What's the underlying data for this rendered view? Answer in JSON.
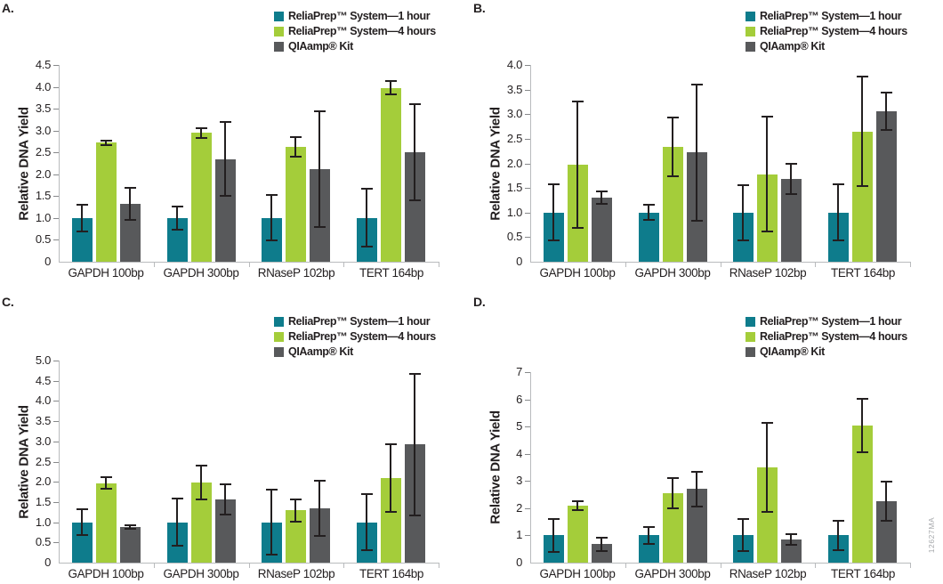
{
  "figure": {
    "watermark": "12627MA",
    "colors": {
      "series": [
        "#0e7c8c",
        "#a4cd3a",
        "#58595b"
      ],
      "axis_line": "#b9bbbd",
      "tick_mark": "#87898b",
      "error_bar": "#231f20",
      "text": "#231f20",
      "watermark": "#a7a9ac"
    }
  },
  "chart_data": [
    {
      "type": "bar",
      "panel_label": "A.",
      "ylabel": "Relative DNA Yield",
      "categories": [
        "GAPDH 100bp",
        "GAPDH 300bp",
        "RNaseP 102bp",
        "TERT 164bp"
      ],
      "ylim": [
        0,
        4.5
      ],
      "ytick_step": 0.5,
      "ytick_decimals": 1,
      "grid": false,
      "legend_position": "top-right",
      "series": [
        {
          "name": "ReliaPrep™ System—1 hour",
          "values": [
            1.0,
            1.0,
            1.0,
            1.0
          ],
          "errors": [
            0.3,
            0.27,
            0.52,
            0.66
          ]
        },
        {
          "name": "ReliaPrep™ System—4 hours",
          "values": [
            2.72,
            2.95,
            2.63,
            3.98
          ],
          "errors": [
            0.05,
            0.11,
            0.23,
            0.16
          ]
        },
        {
          "name": "QIAamp® Kit",
          "values": [
            1.33,
            2.35,
            2.12,
            2.5
          ],
          "errors": [
            0.37,
            0.85,
            1.32,
            1.1
          ]
        }
      ]
    },
    {
      "type": "bar",
      "panel_label": "B.",
      "ylabel": "Relative DNA Yield",
      "categories": [
        "GAPDH 100bp",
        "GAPDH 300bp",
        "RNaseP 102bp",
        "TERT 164bp"
      ],
      "ylim": [
        0,
        4.0
      ],
      "ytick_step": 0.5,
      "ytick_decimals": 1,
      "grid": false,
      "legend_position": "top-right",
      "series": [
        {
          "name": "ReliaPrep™ System—1 hour",
          "values": [
            1.0,
            1.0,
            1.0,
            1.0
          ],
          "errors": [
            0.57,
            0.15,
            0.56,
            0.57
          ]
        },
        {
          "name": "ReliaPrep™ System—4 hours",
          "values": [
            1.97,
            2.33,
            1.78,
            2.65
          ],
          "errors": [
            1.29,
            0.6,
            1.17,
            1.11
          ]
        },
        {
          "name": "QIAamp® Kit",
          "values": [
            1.3,
            2.22,
            1.69,
            3.05
          ],
          "errors": [
            0.13,
            1.39,
            0.31,
            0.38
          ]
        }
      ]
    },
    {
      "type": "bar",
      "panel_label": "C.",
      "ylabel": "Relative DNA Yield",
      "categories": [
        "GAPDH 100bp",
        "GAPDH 300bp",
        "RNaseP 102bp",
        "TERT 164bp"
      ],
      "ylim": [
        0,
        5.0
      ],
      "ytick_step": 0.5,
      "ytick_decimals": 1,
      "grid": false,
      "legend_position": "top-right",
      "series": [
        {
          "name": "ReliaPrep™ System—1 hour",
          "values": [
            1.0,
            1.0,
            1.0,
            1.0
          ],
          "errors": [
            0.32,
            0.58,
            0.8,
            0.69
          ]
        },
        {
          "name": "ReliaPrep™ System—4 hours",
          "values": [
            1.97,
            1.98,
            1.29,
            2.1
          ],
          "errors": [
            0.15,
            0.42,
            0.28,
            0.84
          ]
        },
        {
          "name": "QIAamp® Kit",
          "values": [
            0.88,
            1.57,
            1.34,
            2.92
          ],
          "errors": [
            0.05,
            0.37,
            0.69,
            1.75
          ]
        }
      ]
    },
    {
      "type": "bar",
      "panel_label": "D.",
      "ylabel": "Relative DNA Yield",
      "categories": [
        "GAPDH 100bp",
        "GAPDH 300bp",
        "RNaseP 102bp",
        "TERT 164bp"
      ],
      "ylim": [
        0,
        7
      ],
      "ytick_step": 1,
      "ytick_decimals": 0,
      "grid": false,
      "legend_position": "top-right",
      "series": [
        {
          "name": "ReliaPrep™ System—1 hour",
          "values": [
            1.0,
            1.0,
            1.0,
            1.0
          ],
          "errors": [
            0.6,
            0.3,
            0.59,
            0.53
          ]
        },
        {
          "name": "ReliaPrep™ System—4 hours",
          "values": [
            2.1,
            2.55,
            3.5,
            5.05
          ],
          "errors": [
            0.17,
            0.57,
            1.65,
            0.98
          ]
        },
        {
          "name": "QIAamp® Kit",
          "values": [
            0.68,
            2.7,
            0.85,
            2.27
          ],
          "errors": [
            0.24,
            0.65,
            0.2,
            0.72
          ]
        }
      ]
    }
  ]
}
